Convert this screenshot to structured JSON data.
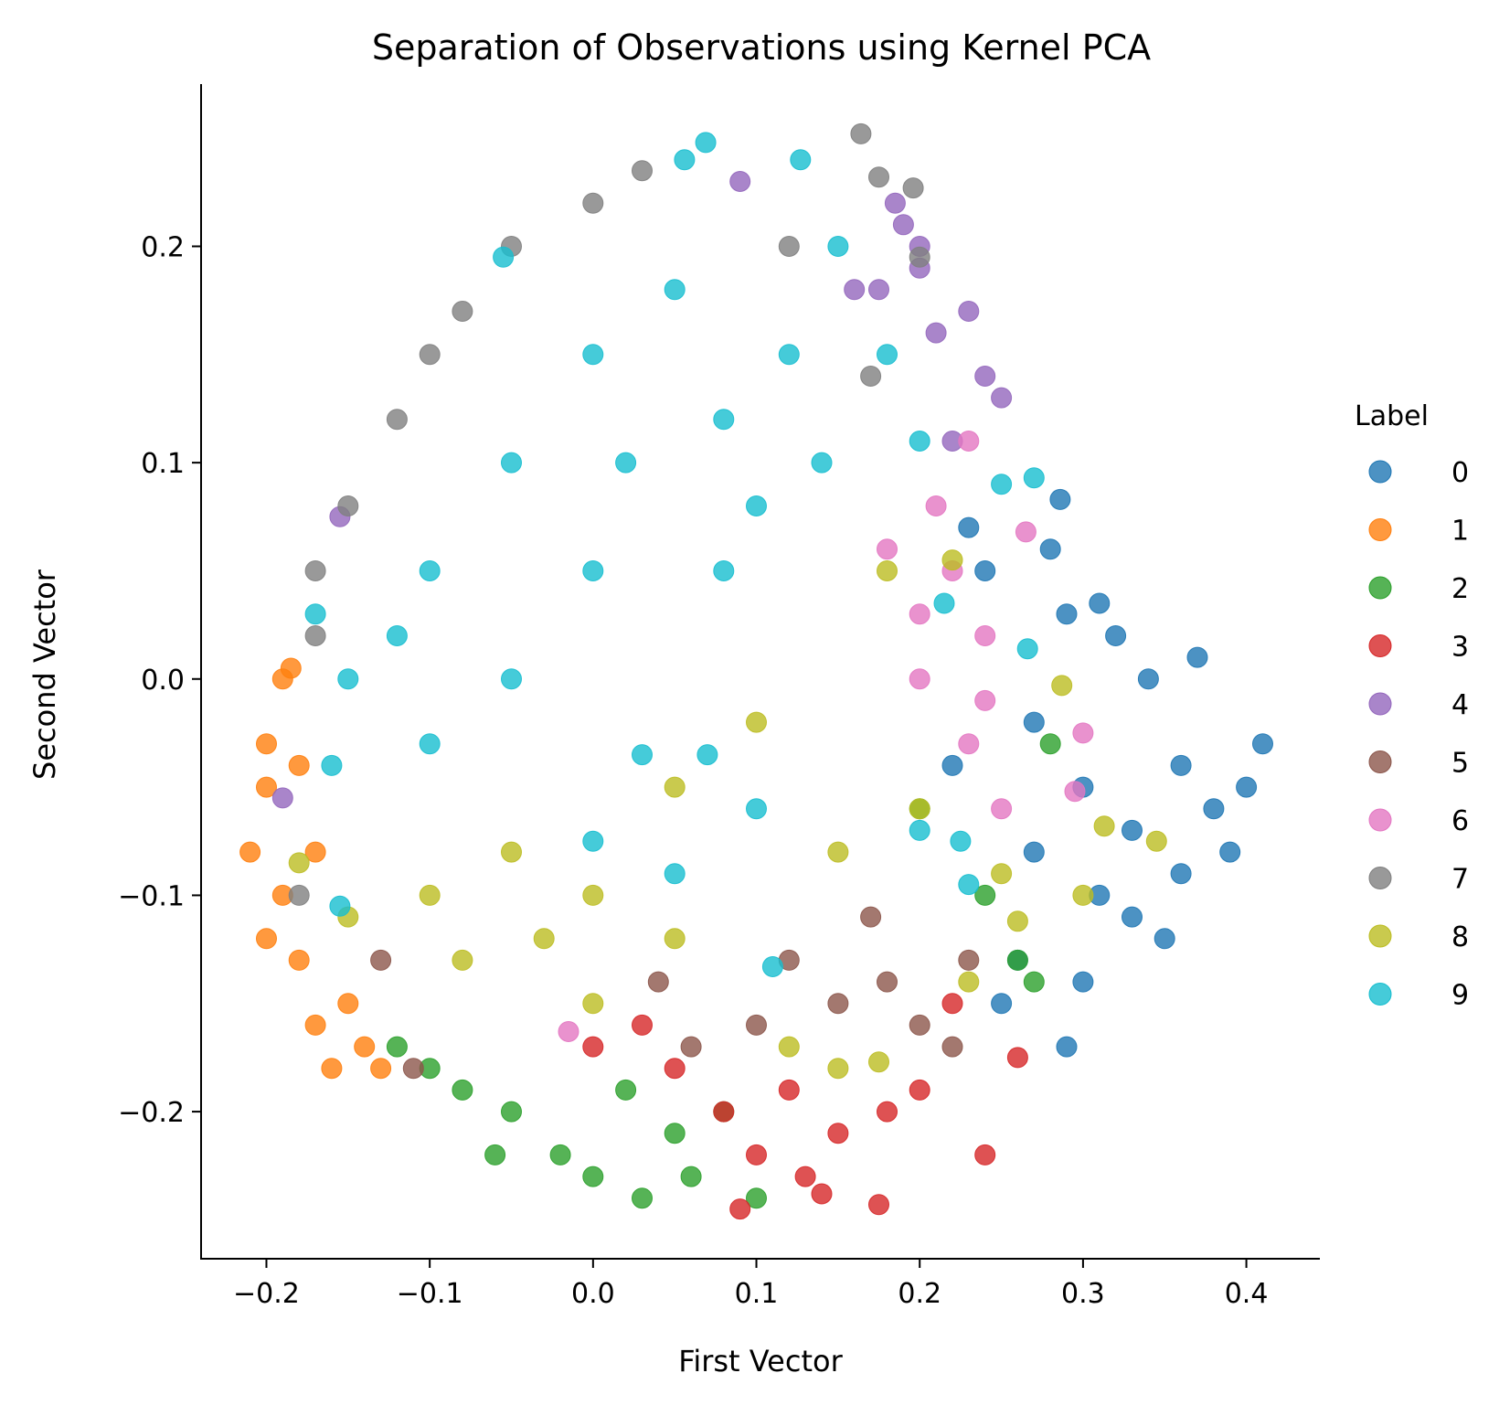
{
  "chart_data": {
    "type": "scatter",
    "title": "Separation of Observations using Kernel PCA",
    "xlabel": "First Vector",
    "ylabel": "Second Vector",
    "xlim": [
      -0.24,
      0.445
    ],
    "ylim": [
      -0.268,
      0.275
    ],
    "xticks": [
      -0.2,
      -0.1,
      0.0,
      0.1,
      0.2,
      0.3,
      0.4
    ],
    "yticks": [
      -0.2,
      -0.1,
      0.0,
      0.1,
      0.2
    ],
    "xtick_labels": [
      "−0.2",
      "−0.1",
      "0.0",
      "0.1",
      "0.2",
      "0.3",
      "0.4"
    ],
    "ytick_labels": [
      "−0.2",
      "−0.1",
      "0.0",
      "0.1",
      "0.2"
    ],
    "grid": false,
    "legend": {
      "title": "Label",
      "placement": "right",
      "entries": [
        {
          "label": "0",
          "color": "#1f77b4"
        },
        {
          "label": "1",
          "color": "#ff7f0e"
        },
        {
          "label": "2",
          "color": "#2ca02c"
        },
        {
          "label": "3",
          "color": "#d62728"
        },
        {
          "label": "4",
          "color": "#9467bd"
        },
        {
          "label": "5",
          "color": "#8c564b"
        },
        {
          "label": "6",
          "color": "#e377c2"
        },
        {
          "label": "7",
          "color": "#7f7f7f"
        },
        {
          "label": "8",
          "color": "#bcbd22"
        },
        {
          "label": "9",
          "color": "#17becf"
        }
      ]
    },
    "series": [
      {
        "name": "0",
        "color": "#1f77b4",
        "points": [
          [
            0.3,
            -0.05
          ],
          [
            0.33,
            -0.07
          ],
          [
            0.36,
            -0.04
          ],
          [
            0.31,
            -0.1
          ],
          [
            0.27,
            -0.02
          ],
          [
            0.34,
            0.0
          ],
          [
            0.38,
            -0.06
          ],
          [
            0.41,
            -0.03
          ],
          [
            0.4,
            -0.05
          ],
          [
            0.29,
            0.03
          ],
          [
            0.32,
            0.02
          ],
          [
            0.35,
            -0.12
          ],
          [
            0.3,
            -0.14
          ],
          [
            0.26,
            -0.13
          ],
          [
            0.25,
            -0.15
          ],
          [
            0.28,
            0.06
          ],
          [
            0.286,
            0.083
          ],
          [
            0.37,
            0.01
          ],
          [
            0.39,
            -0.08
          ],
          [
            0.24,
            0.05
          ],
          [
            0.22,
            -0.04
          ],
          [
            0.29,
            -0.17
          ],
          [
            0.33,
            -0.11
          ],
          [
            0.36,
            -0.09
          ],
          [
            0.31,
            0.035
          ],
          [
            0.23,
            0.07
          ],
          [
            0.27,
            -0.08
          ]
        ]
      },
      {
        "name": "1",
        "color": "#ff7f0e",
        "points": [
          [
            -0.2,
            -0.05
          ],
          [
            -0.19,
            -0.1
          ],
          [
            -0.18,
            -0.13
          ],
          [
            -0.17,
            -0.16
          ],
          [
            -0.21,
            -0.08
          ],
          [
            -0.2,
            -0.03
          ],
          [
            -0.19,
            0.0
          ],
          [
            -0.15,
            -0.15
          ],
          [
            -0.14,
            -0.17
          ],
          [
            -0.16,
            -0.18
          ],
          [
            -0.13,
            -0.18
          ],
          [
            -0.17,
            -0.08
          ],
          [
            -0.18,
            -0.04
          ],
          [
            -0.2,
            -0.12
          ],
          [
            -0.185,
            0.005
          ]
        ]
      },
      {
        "name": "2",
        "color": "#2ca02c",
        "points": [
          [
            -0.05,
            -0.2
          ],
          [
            -0.02,
            -0.22
          ],
          [
            0.0,
            -0.23
          ],
          [
            0.03,
            -0.24
          ],
          [
            0.06,
            -0.23
          ],
          [
            -0.08,
            -0.19
          ],
          [
            -0.1,
            -0.18
          ],
          [
            0.05,
            -0.21
          ],
          [
            0.08,
            -0.2
          ],
          [
            0.1,
            -0.24
          ],
          [
            -0.06,
            -0.22
          ],
          [
            0.02,
            -0.19
          ],
          [
            -0.12,
            -0.17
          ],
          [
            0.2,
            -0.06
          ],
          [
            0.24,
            -0.1
          ],
          [
            0.26,
            -0.13
          ],
          [
            0.28,
            -0.03
          ],
          [
            0.27,
            -0.14
          ]
        ]
      },
      {
        "name": "3",
        "color": "#d62728",
        "points": [
          [
            0.05,
            -0.18
          ],
          [
            0.08,
            -0.2
          ],
          [
            0.1,
            -0.22
          ],
          [
            0.13,
            -0.23
          ],
          [
            0.15,
            -0.21
          ],
          [
            0.18,
            -0.2
          ],
          [
            0.2,
            -0.19
          ],
          [
            0.09,
            -0.245
          ],
          [
            0.175,
            -0.243
          ],
          [
            0.24,
            -0.22
          ],
          [
            0.26,
            -0.175
          ],
          [
            0.03,
            -0.16
          ],
          [
            0.0,
            -0.17
          ],
          [
            0.12,
            -0.19
          ],
          [
            0.14,
            -0.238
          ],
          [
            0.22,
            -0.15
          ]
        ]
      },
      {
        "name": "4",
        "color": "#9467bd",
        "points": [
          [
            0.2,
            0.2
          ],
          [
            0.23,
            0.17
          ],
          [
            0.25,
            0.13
          ],
          [
            0.24,
            0.14
          ],
          [
            0.21,
            0.16
          ],
          [
            0.19,
            0.21
          ],
          [
            0.2,
            0.19
          ],
          [
            0.185,
            0.22
          ],
          [
            0.09,
            0.23
          ],
          [
            -0.155,
            0.075
          ],
          [
            -0.19,
            -0.055
          ],
          [
            0.175,
            0.18
          ],
          [
            0.16,
            0.18
          ],
          [
            0.22,
            0.11
          ]
        ]
      },
      {
        "name": "5",
        "color": "#8c564b",
        "points": [
          [
            0.15,
            -0.15
          ],
          [
            0.18,
            -0.14
          ],
          [
            0.2,
            -0.16
          ],
          [
            0.22,
            -0.17
          ],
          [
            0.12,
            -0.13
          ],
          [
            0.1,
            -0.16
          ],
          [
            0.06,
            -0.17
          ],
          [
            -0.11,
            -0.18
          ],
          [
            -0.13,
            -0.13
          ],
          [
            0.17,
            -0.11
          ],
          [
            0.23,
            -0.13
          ],
          [
            0.04,
            -0.14
          ]
        ]
      },
      {
        "name": "6",
        "color": "#e377c2",
        "points": [
          [
            0.2,
            0.03
          ],
          [
            0.22,
            0.05
          ],
          [
            0.24,
            0.02
          ],
          [
            0.23,
            -0.03
          ],
          [
            0.21,
            0.08
          ],
          [
            0.23,
            0.11
          ],
          [
            0.265,
            0.068
          ],
          [
            0.3,
            -0.025
          ],
          [
            0.295,
            -0.052
          ],
          [
            0.25,
            -0.06
          ],
          [
            -0.015,
            -0.163
          ],
          [
            0.2,
            0.0
          ],
          [
            0.18,
            0.06
          ],
          [
            0.24,
            -0.01
          ]
        ]
      },
      {
        "name": "7",
        "color": "#7f7f7f",
        "points": [
          [
            -0.1,
            0.15
          ],
          [
            -0.12,
            0.12
          ],
          [
            -0.15,
            0.08
          ],
          [
            -0.17,
            0.05
          ],
          [
            -0.05,
            0.2
          ],
          [
            0.0,
            0.22
          ],
          [
            0.03,
            0.235
          ],
          [
            0.164,
            0.252
          ],
          [
            0.175,
            0.232
          ],
          [
            0.196,
            0.227
          ],
          [
            0.2,
            0.195
          ],
          [
            -0.18,
            -0.1
          ],
          [
            -0.17,
            0.02
          ],
          [
            0.12,
            0.2
          ],
          [
            0.17,
            0.14
          ],
          [
            -0.08,
            0.17
          ]
        ]
      },
      {
        "name": "8",
        "color": "#bcbd22",
        "points": [
          [
            -0.1,
            -0.1
          ],
          [
            -0.05,
            -0.08
          ],
          [
            0.0,
            -0.1
          ],
          [
            0.05,
            -0.05
          ],
          [
            0.1,
            -0.02
          ],
          [
            0.15,
            -0.08
          ],
          [
            0.2,
            -0.06
          ],
          [
            0.25,
            -0.09
          ],
          [
            0.3,
            -0.1
          ],
          [
            0.345,
            -0.075
          ],
          [
            0.313,
            -0.068
          ],
          [
            0.287,
            -0.003
          ],
          [
            0.22,
            0.055
          ],
          [
            0.18,
            0.05
          ],
          [
            0.05,
            -0.12
          ],
          [
            -0.08,
            -0.13
          ],
          [
            -0.15,
            -0.11
          ],
          [
            -0.18,
            -0.085
          ],
          [
            0.12,
            -0.17
          ],
          [
            0.15,
            -0.18
          ],
          [
            0.175,
            -0.177
          ],
          [
            0.0,
            -0.15
          ],
          [
            -0.03,
            -0.12
          ],
          [
            0.26,
            -0.112
          ],
          [
            0.23,
            -0.14
          ]
        ]
      },
      {
        "name": "9",
        "color": "#17becf",
        "points": [
          [
            0.0,
            0.15
          ],
          [
            -0.05,
            0.1
          ],
          [
            0.05,
            0.18
          ],
          [
            -0.1,
            0.05
          ],
          [
            -0.15,
            0.0
          ],
          [
            0.02,
            0.1
          ],
          [
            0.08,
            0.12
          ],
          [
            0.12,
            0.15
          ],
          [
            0.1,
            0.08
          ],
          [
            -0.05,
            0.0
          ],
          [
            0.0,
            0.05
          ],
          [
            -0.12,
            0.02
          ],
          [
            0.069,
            0.248
          ],
          [
            0.056,
            0.24
          ],
          [
            0.127,
            0.24
          ],
          [
            -0.055,
            0.195
          ],
          [
            -0.17,
            0.03
          ],
          [
            0.25,
            0.09
          ],
          [
            0.27,
            0.093
          ],
          [
            0.266,
            0.014
          ],
          [
            0.15,
            0.2
          ],
          [
            0.18,
            0.15
          ],
          [
            -0.155,
            -0.105
          ],
          [
            0.11,
            -0.133
          ],
          [
            0.05,
            -0.09
          ],
          [
            0.0,
            -0.075
          ],
          [
            0.03,
            -0.035
          ],
          [
            -0.1,
            -0.03
          ],
          [
            0.2,
            -0.07
          ],
          [
            0.225,
            -0.075
          ],
          [
            0.23,
            -0.095
          ],
          [
            -0.16,
            -0.04
          ],
          [
            0.07,
            -0.035
          ],
          [
            0.1,
            -0.06
          ],
          [
            0.08,
            0.05
          ],
          [
            0.14,
            0.1
          ],
          [
            0.2,
            0.11
          ],
          [
            0.215,
            0.035
          ]
        ]
      }
    ]
  }
}
